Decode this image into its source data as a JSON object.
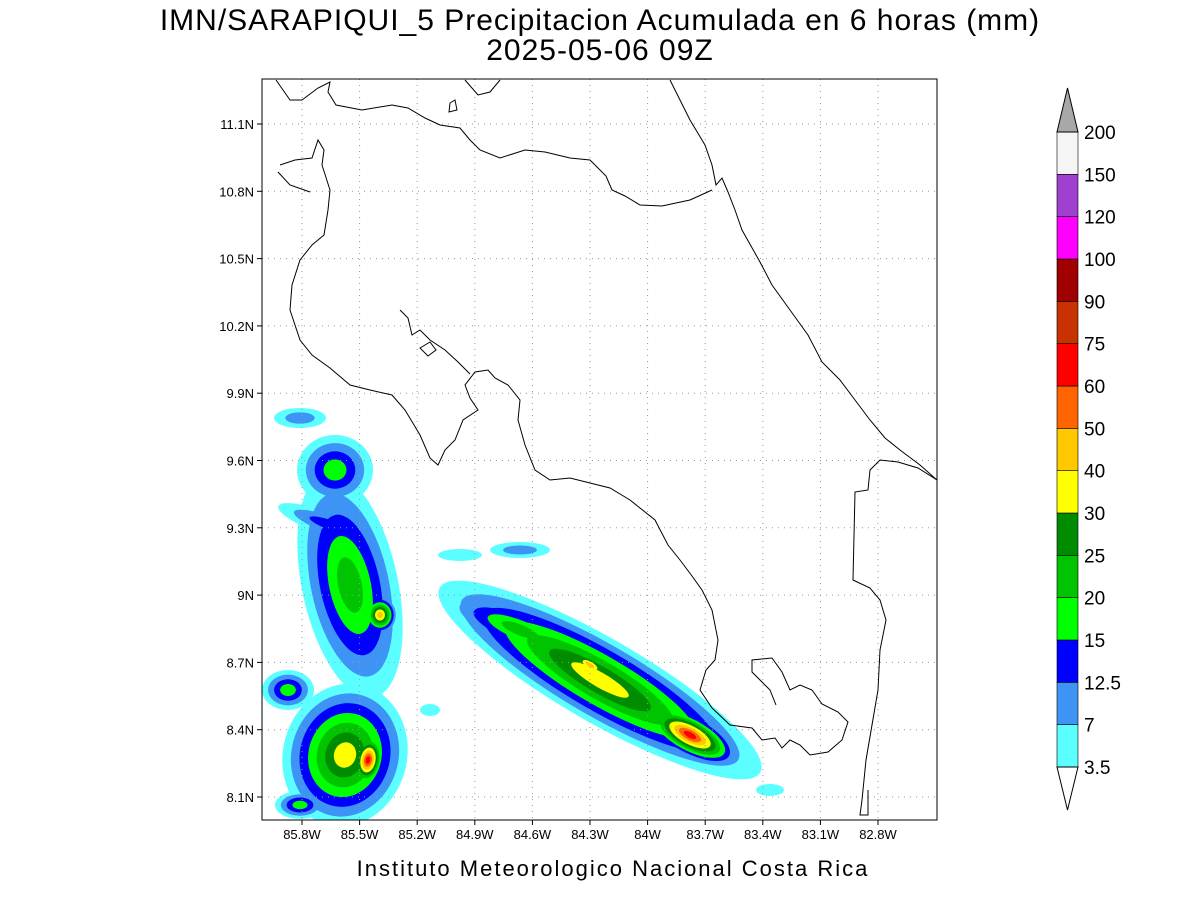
{
  "title": "IMN/SARAPIQUI_5 Precipitacion Acumulada en 6 horas (mm)",
  "subtitle": "2025-05-06 09Z",
  "lat_labels": [
    "11.1N",
    "10.8N",
    "10.5N",
    "10.2N",
    "9.9N",
    "9.6N",
    "9.3N",
    "9N",
    "8.7N",
    "8.4N",
    "8.1N"
  ],
  "lon_labels": [
    "85.8W",
    "85.5W",
    "85.2W",
    "84.9W",
    "84.6W",
    "84.3W",
    "84W",
    "83.7W",
    "83.4W",
    "83.1W",
    "82.8W"
  ],
  "colorbar": {
    "labels": [
      "3.5",
      "7",
      "12.5",
      "15",
      "20",
      "25",
      "30",
      "40",
      "50",
      "60",
      "75",
      "90",
      "100",
      "120",
      "150",
      "200"
    ],
    "colors": [
      "#5cffff",
      "#3d94f5",
      "#0000ff",
      "#00ff00",
      "#00c400",
      "#008c00",
      "#ffff00",
      "#ffc800",
      "#ff6400",
      "#ff0000",
      "#c83200",
      "#a00000",
      "#ff00ff",
      "#a040d0",
      "#f5f5f5"
    ],
    "over_color": "#a8a8a8",
    "under_color": "#ffffff"
  },
  "footer": "Instituto Meteorologico Nacional Costa Rica"
}
